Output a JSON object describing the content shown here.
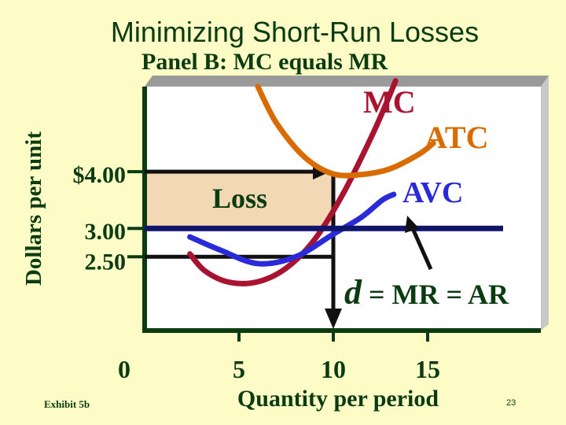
{
  "slide": {
    "title": "Minimizing Short-Run Losses",
    "exhibit": "Exhibit 5b",
    "page_number": "23"
  },
  "chart_data": {
    "type": "line",
    "title": "Panel B: MC equals MR",
    "xlabel": "Quantity per period",
    "ylabel": "Dollars per unit",
    "x_ticks": [
      "0",
      "5",
      "10",
      "15"
    ],
    "y_ticks": [
      "$4.00",
      "3.00",
      "2.50"
    ],
    "xlim": [
      0,
      21
    ],
    "ylim": [
      1.2,
      5.5
    ],
    "series": [
      {
        "name": "MC",
        "color": "#a8132f",
        "x": [
          2.4,
          3.2,
          4.5,
          6.0,
          7.5,
          9.0,
          10.5,
          12.0,
          12.8,
          13.3
        ],
        "y": [
          2.55,
          2.25,
          2.05,
          2.06,
          2.3,
          2.8,
          3.6,
          4.6,
          5.2,
          5.6
        ]
      },
      {
        "name": "ATC",
        "color": "#d96b00",
        "x": [
          6.0,
          7.0,
          8.5,
          10.0,
          11.5,
          13.0,
          14.5,
          15.3
        ],
        "y": [
          5.5,
          4.85,
          4.25,
          3.96,
          3.95,
          4.05,
          4.3,
          4.5
        ]
      },
      {
        "name": "AVC",
        "color": "#2a2ad8",
        "x": [
          2.4,
          4.0,
          6.0,
          8.0,
          10.0,
          11.5,
          12.6,
          13.2
        ],
        "y": [
          2.85,
          2.62,
          2.38,
          2.5,
          2.9,
          3.2,
          3.5,
          3.6
        ]
      },
      {
        "name": "d = MR = AR",
        "color": "#10146a",
        "x": [
          0,
          19
        ],
        "y": [
          3.0,
          3.0
        ]
      }
    ],
    "annotations": [
      {
        "text": "Loss",
        "x_range": [
          0,
          10
        ],
        "y_range": [
          3.0,
          4.0
        ],
        "fill": "#f3d8b6"
      },
      {
        "guide": "price",
        "y": 4.0,
        "x_to": 10
      },
      {
        "guide": "price",
        "y": 2.5,
        "x_to": 10
      },
      {
        "guide": "quantity",
        "x": 10,
        "y_from": 4.0
      }
    ],
    "legend_labels": {
      "mc": "MC",
      "atc": "ATC",
      "avc": "AVC",
      "d_letter": "d",
      "d_rest": " = MR = AR"
    },
    "grid": false
  },
  "colors": {
    "background": "#fdfbc6",
    "text_dark": "#0b3b10",
    "axis": "#0b3b10",
    "panel": "#ffffff",
    "panel_shadow": "#c8c8c8",
    "guides": "#111111"
  }
}
